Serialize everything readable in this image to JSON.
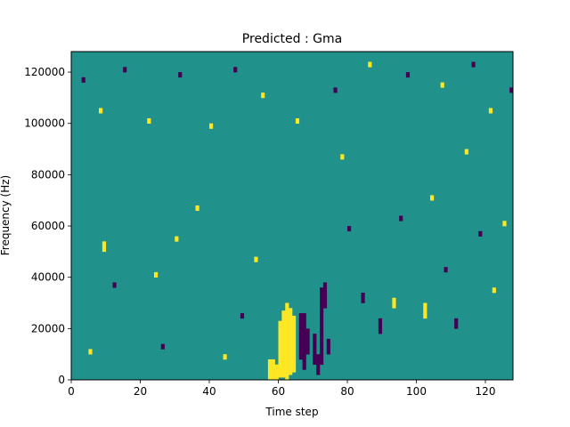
{
  "chart_data": {
    "type": "heatmap",
    "title": "Predicted : Gma",
    "xlabel": "Time step",
    "ylabel": "Frequency (Hz)",
    "xlim": [
      0,
      128
    ],
    "ylim": [
      0,
      128000
    ],
    "x_ticks": [
      0,
      20,
      40,
      60,
      80,
      100,
      120
    ],
    "y_ticks": [
      0,
      20000,
      40000,
      60000,
      80000,
      100000,
      120000
    ],
    "y_tick_labels": [
      "0",
      "20000",
      "40000",
      "60000",
      "80000",
      "100000",
      "120000"
    ],
    "grid": false,
    "legend": "none",
    "rows": 128,
    "cols": 128,
    "value_levels": [
      -1,
      0,
      1
    ],
    "colors": {
      "-1": "#440154",
      "0": "#21918c",
      "1": "#fde725"
    },
    "background_value": 0,
    "cells": [
      [
        57,
        0,
        8,
        1
      ],
      [
        58,
        0,
        8,
        1
      ],
      [
        59,
        0,
        6,
        1
      ],
      [
        60,
        1,
        22,
        1
      ],
      [
        61,
        1,
        26,
        1
      ],
      [
        62,
        0,
        30,
        1
      ],
      [
        63,
        2,
        26,
        1
      ],
      [
        64,
        3,
        22,
        1
      ],
      [
        66,
        8,
        18,
        -1
      ],
      [
        67,
        4,
        22,
        -1
      ],
      [
        68,
        10,
        10,
        -1
      ],
      [
        70,
        6,
        12,
        -1
      ],
      [
        71,
        2,
        8,
        -1
      ],
      [
        72,
        6,
        30,
        -1
      ],
      [
        73,
        28,
        10,
        -1
      ],
      [
        74,
        10,
        6,
        -1
      ],
      [
        84,
        30,
        4,
        -1
      ],
      [
        89,
        18,
        6,
        -1
      ],
      [
        93,
        28,
        4,
        1
      ],
      [
        102,
        24,
        6,
        1
      ],
      [
        111,
        20,
        4,
        -1
      ],
      [
        5,
        10,
        2,
        1
      ],
      [
        9,
        50,
        4,
        1
      ],
      [
        12,
        36,
        2,
        -1
      ],
      [
        24,
        40,
        2,
        1
      ],
      [
        26,
        12,
        2,
        -1
      ],
      [
        30,
        54,
        2,
        1
      ],
      [
        36,
        66,
        2,
        1
      ],
      [
        44,
        8,
        2,
        1
      ],
      [
        49,
        24,
        2,
        -1
      ],
      [
        53,
        46,
        2,
        1
      ],
      [
        78,
        86,
        2,
        1
      ],
      [
        80,
        58,
        2,
        -1
      ],
      [
        95,
        62,
        2,
        -1
      ],
      [
        104,
        70,
        2,
        1
      ],
      [
        108,
        42,
        2,
        -1
      ],
      [
        114,
        88,
        2,
        1
      ],
      [
        118,
        56,
        2,
        -1
      ],
      [
        122,
        34,
        2,
        1
      ],
      [
        125,
        60,
        2,
        1
      ],
      [
        3,
        116,
        2,
        -1
      ],
      [
        8,
        104,
        2,
        1
      ],
      [
        15,
        120,
        2,
        -1
      ],
      [
        22,
        100,
        2,
        1
      ],
      [
        31,
        118,
        2,
        -1
      ],
      [
        40,
        98,
        2,
        1
      ],
      [
        47,
        120,
        2,
        -1
      ],
      [
        55,
        110,
        2,
        1
      ],
      [
        65,
        100,
        2,
        1
      ],
      [
        76,
        112,
        2,
        -1
      ],
      [
        86,
        122,
        2,
        1
      ],
      [
        97,
        118,
        2,
        -1
      ],
      [
        107,
        114,
        2,
        1
      ],
      [
        116,
        122,
        2,
        -1
      ],
      [
        121,
        104,
        2,
        1
      ],
      [
        127,
        112,
        2,
        -1
      ]
    ]
  }
}
